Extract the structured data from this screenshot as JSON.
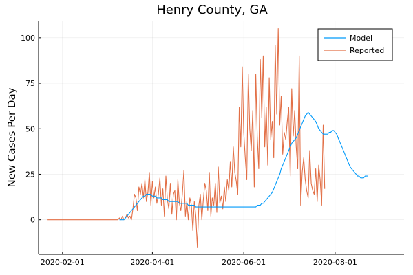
{
  "chart_data": {
    "type": "line",
    "title": "Henry County, GA",
    "xlabel": "",
    "ylabel": "New Cases Per Day",
    "x_start": "2020-01-22",
    "x_end": "2020-09-10",
    "xlim": [
      "2020-01-16",
      "2020-09-16"
    ],
    "ylim": [
      -19,
      109
    ],
    "xticks": [
      "2020-02-01",
      "2020-04-01",
      "2020-06-01",
      "2020-08-01"
    ],
    "yticks": [
      0,
      25,
      50,
      75,
      100
    ],
    "grid": true,
    "legend": {
      "position": "top-right",
      "entries": [
        "Model",
        "Reported"
      ]
    },
    "colors": {
      "Model": "#009AFA",
      "Reported": "#E26F46"
    },
    "series": [
      {
        "name": "Model",
        "start": "2020-03-10",
        "values": [
          0,
          0,
          0,
          0,
          1,
          2,
          3,
          4,
          5,
          6,
          7,
          8,
          9,
          10,
          11,
          12,
          13,
          13,
          14,
          14,
          14,
          14,
          13,
          13,
          13,
          12,
          12,
          12,
          12,
          11,
          11,
          11,
          11,
          10,
          10,
          10,
          10,
          10,
          10,
          10,
          9,
          9,
          9,
          9,
          9,
          9,
          8,
          8,
          8,
          8,
          8,
          7,
          7,
          7,
          7,
          7,
          7,
          7,
          7,
          7,
          7,
          7,
          7,
          7,
          7,
          7,
          7,
          7,
          7,
          7,
          7,
          7,
          7,
          7,
          7,
          7,
          7,
          7,
          7,
          7,
          7,
          7,
          7,
          7,
          7,
          7,
          7,
          7,
          7,
          7,
          7,
          7,
          8,
          8,
          8,
          9,
          9,
          10,
          11,
          12,
          13,
          14,
          15,
          17,
          19,
          21,
          23,
          25,
          28,
          30,
          32,
          34,
          36,
          38,
          40,
          42,
          43,
          44,
          45,
          47,
          49,
          51,
          53,
          55,
          57,
          58,
          59,
          58,
          57,
          56,
          55,
          54,
          52,
          50,
          49,
          48,
          47,
          47,
          47,
          47,
          48,
          48,
          49,
          49,
          48,
          47,
          45,
          43,
          41,
          39,
          37,
          35,
          33,
          31,
          29,
          28,
          27,
          26,
          25,
          24,
          24,
          23,
          23,
          23,
          24,
          24,
          24
        ]
      },
      {
        "name": "Reported",
        "start": "2020-01-22",
        "values": [
          0,
          0,
          0,
          0,
          0,
          0,
          0,
          0,
          0,
          0,
          0,
          0,
          0,
          0,
          0,
          0,
          0,
          0,
          0,
          0,
          0,
          0,
          0,
          0,
          0,
          0,
          0,
          0,
          0,
          0,
          0,
          0,
          0,
          0,
          0,
          0,
          0,
          0,
          0,
          0,
          0,
          0,
          0,
          0,
          0,
          0,
          0,
          0,
          1,
          0,
          2,
          0,
          1,
          3,
          1,
          2,
          0,
          6,
          14,
          12,
          5,
          18,
          14,
          20,
          12,
          22,
          10,
          15,
          26,
          8,
          21,
          12,
          18,
          9,
          14,
          23,
          8,
          17,
          2,
          24,
          11,
          6,
          20,
          3,
          14,
          16,
          0,
          22,
          9,
          5,
          14,
          27,
          2,
          10,
          0,
          12,
          8,
          -6,
          10,
          2,
          -15,
          8,
          14,
          0,
          11,
          20,
          16,
          5,
          26,
          2,
          12,
          8,
          20,
          4,
          29,
          9,
          13,
          6,
          18,
          10,
          22,
          16,
          32,
          18,
          40,
          26,
          21,
          14,
          62,
          40,
          84,
          48,
          34,
          22,
          80,
          50,
          38,
          60,
          18,
          80,
          46,
          28,
          88,
          56,
          90,
          40,
          62,
          30,
          78,
          44,
          54,
          34,
          96,
          58,
          105,
          52,
          68,
          36,
          48,
          44,
          54,
          62,
          24,
          72,
          46,
          60,
          40,
          28,
          90,
          8,
          26,
          34,
          22,
          16,
          12,
          38,
          20,
          16,
          14,
          28,
          10,
          30,
          22,
          8,
          52,
          17
        ]
      }
    ]
  }
}
